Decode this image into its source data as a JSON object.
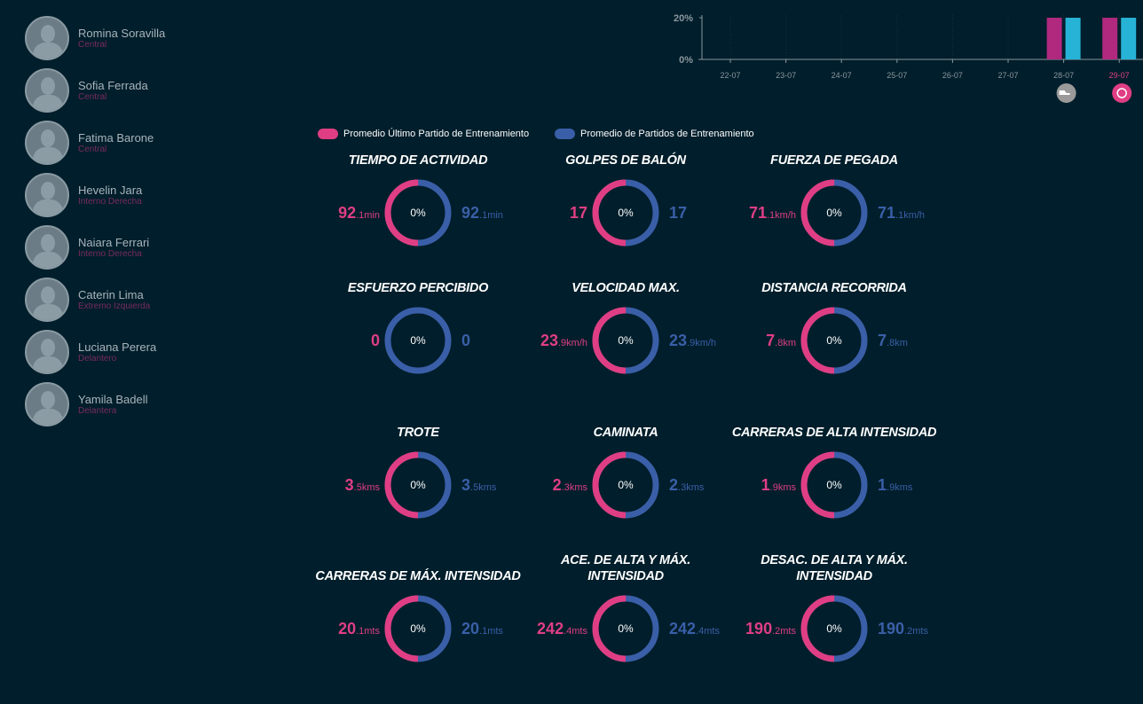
{
  "players": [
    {
      "name": "Romina Soravilla",
      "role": "Central"
    },
    {
      "name": "Sofia Ferrada",
      "role": "Central"
    },
    {
      "name": "Fatima Barone",
      "role": "Central"
    },
    {
      "name": "Hevelin Jara",
      "role": "Interno Derecha"
    },
    {
      "name": "Naiara Ferrari",
      "role": "Interno Derecha"
    },
    {
      "name": "Caterin Lima",
      "role": "Extremo Izquierda"
    },
    {
      "name": "Luciana Perera",
      "role": "Delantero"
    },
    {
      "name": "Yamila Badell",
      "role": "Delantera"
    }
  ],
  "chart_data": {
    "type": "bar",
    "categories": [
      "22-07",
      "23-07",
      "24-07",
      "25-07",
      "26-07",
      "27-07",
      "28-07",
      "29-07"
    ],
    "series": [
      {
        "name": "magenta",
        "color": "#b0297f",
        "values": [
          0,
          0,
          0,
          0,
          0,
          0,
          20,
          20
        ]
      },
      {
        "name": "cyan",
        "color": "#27b3d6",
        "values": [
          0,
          0,
          0,
          0,
          0,
          0,
          20,
          20
        ]
      }
    ],
    "yticks": [
      "0%",
      "20%"
    ],
    "ylim": [
      0,
      20
    ],
    "highlight": "29-07",
    "markers": [
      {
        "date": "28-07",
        "icon": "boot-icon"
      },
      {
        "date": "29-07",
        "icon": "soccer-ball-icon"
      }
    ]
  },
  "legend": {
    "last": "Promedio Último Partido de Entrenamiento",
    "avg": "Promedio de Partidos de Entrenamiento",
    "last_color": "#e03e84",
    "avg_color": "#3a5fa8"
  },
  "metrics": [
    {
      "title": "TIEMPO DE ACTIVIDAD",
      "l": "92",
      "ls": ".1min",
      "r": "92",
      "rs": ".1min",
      "pct": "0%",
      "pink": 0.5
    },
    {
      "title": "GOLPES DE BALÓN",
      "l": "17",
      "ls": "",
      "r": "17",
      "rs": "",
      "pct": "0%",
      "pink": 0.5
    },
    {
      "title": "FUERZA DE PEGADA",
      "l": "71",
      "ls": ".1km/h",
      "r": "71",
      "rs": ".1km/h",
      "pct": "0%",
      "pink": 0.5
    },
    {
      "title": "ESFUERZO PERCIBIDO",
      "l": "0",
      "ls": "",
      "r": "0",
      "rs": "",
      "pct": "0%",
      "pink": 0
    },
    {
      "title": "VELOCIDAD MAX.",
      "l": "23",
      "ls": ".9km/h",
      "r": "23",
      "rs": ".9km/h",
      "pct": "0%",
      "pink": 0.5
    },
    {
      "title": "DISTANCIA RECORRIDA",
      "l": "7",
      "ls": ".8km",
      "r": "7",
      "rs": ".8km",
      "pct": "0%",
      "pink": 0.5
    },
    {
      "title": "TROTE",
      "l": "3",
      "ls": ".5kms",
      "r": "3",
      "rs": ".5kms",
      "pct": "0%",
      "pink": 0.5
    },
    {
      "title": "CAMINATA",
      "l": "2",
      "ls": ".3kms",
      "r": "2",
      "rs": ".3kms",
      "pct": "0%",
      "pink": 0.5
    },
    {
      "title": "CARRERAS DE ALTA INTENSIDAD",
      "l": "1",
      "ls": ".9kms",
      "r": "1",
      "rs": ".9kms",
      "pct": "0%",
      "pink": 0.5
    },
    {
      "title": "CARRERAS DE MÁX. INTENSIDAD",
      "l": "20",
      "ls": ".1mts",
      "r": "20",
      "rs": ".1mts",
      "pct": "0%",
      "pink": 0.5
    },
    {
      "title": "ACE. DE ALTA Y MÁX. INTENSIDAD",
      "l": "242",
      "ls": ".4mts",
      "r": "242",
      "rs": ".4mts",
      "pct": "0%",
      "pink": 0.5
    },
    {
      "title": "DESAC. DE ALTA Y MÁX. INTENSIDAD",
      "l": "190",
      "ls": ".2mts",
      "r": "190",
      "rs": ".2mts",
      "pct": "0%",
      "pink": 0.5
    }
  ]
}
